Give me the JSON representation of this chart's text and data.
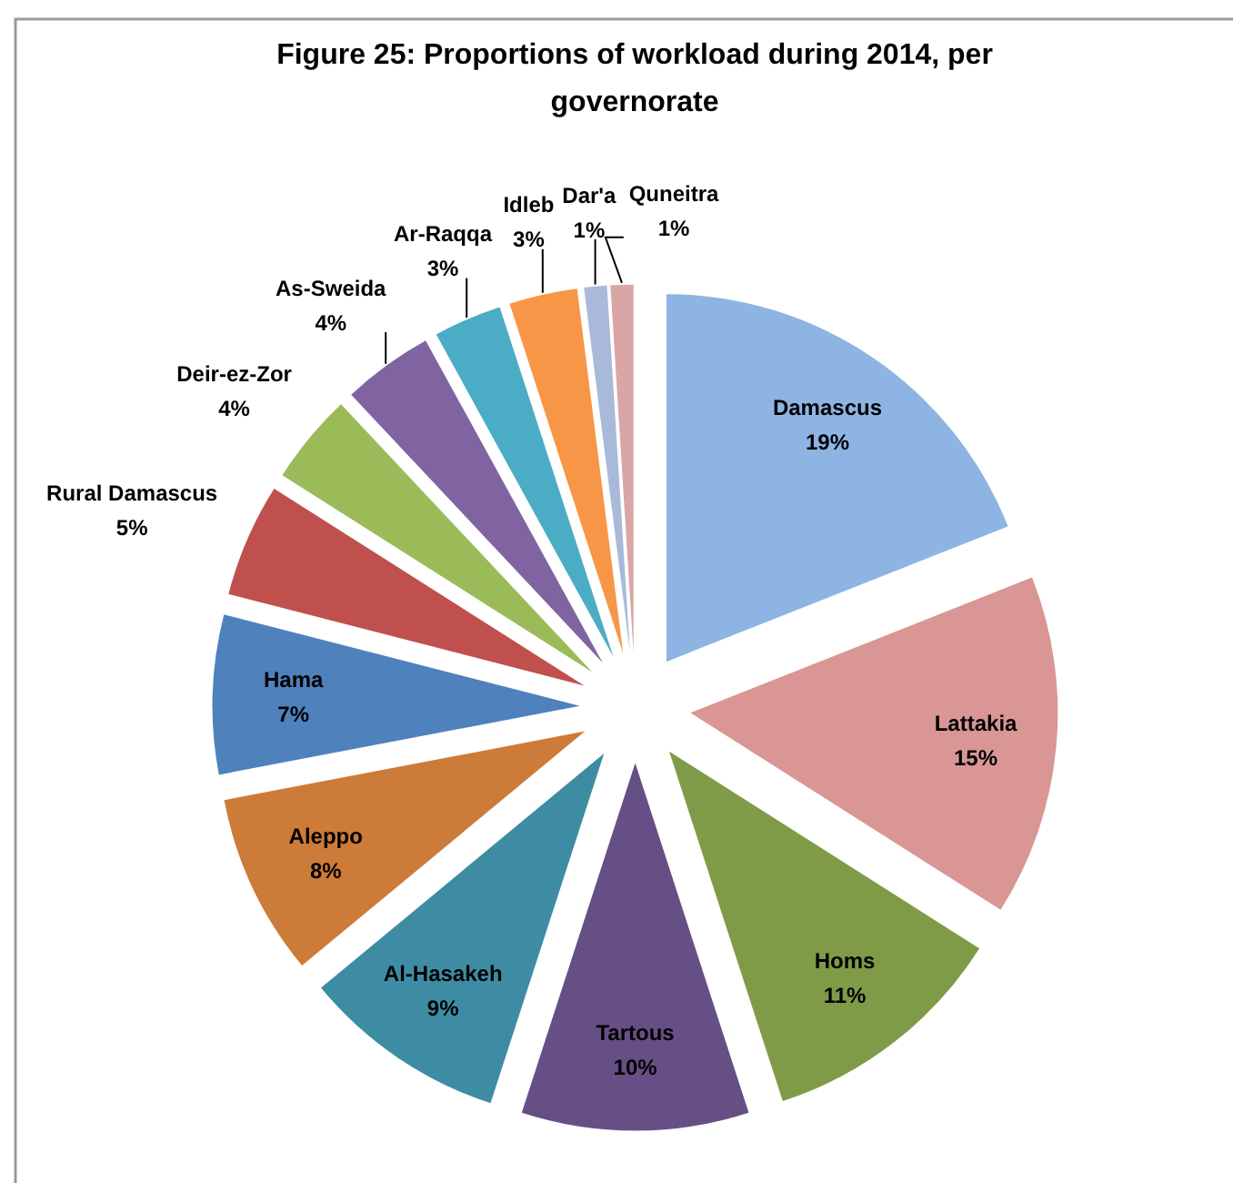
{
  "chart_data": {
    "type": "pie",
    "title": "Figure 25: Proportions of workload during 2014, per governorate",
    "categories": [
      "Damascus",
      "Lattakia",
      "Homs",
      "Tartous",
      "Al-Hasakeh",
      "Aleppo",
      "Hama",
      "Rural Damascus",
      "Deir-ez-Zor",
      "As-Sweida",
      "Ar-Raqqa",
      "Idleb",
      "Dar'a",
      "Quneitra"
    ],
    "values": [
      19,
      15,
      11,
      10,
      9,
      8,
      7,
      5,
      4,
      4,
      3,
      3,
      1,
      1
    ],
    "colors": [
      "#8eb4e3",
      "#d99694",
      "#7f9b48",
      "#664f85",
      "#3d8ca3",
      "#cd7b38",
      "#4f81bd",
      "#c0504d",
      "#9bbb59",
      "#8064a2",
      "#4bacc6",
      "#f79646",
      "#a9b9d9",
      "#d9a5a5"
    ],
    "value_labels": [
      "19%",
      "15%",
      "11%",
      "10%",
      "9%",
      "8%",
      "7%",
      "5%",
      "4%",
      "4%",
      "3%",
      "3%",
      "1%",
      "1%"
    ]
  }
}
